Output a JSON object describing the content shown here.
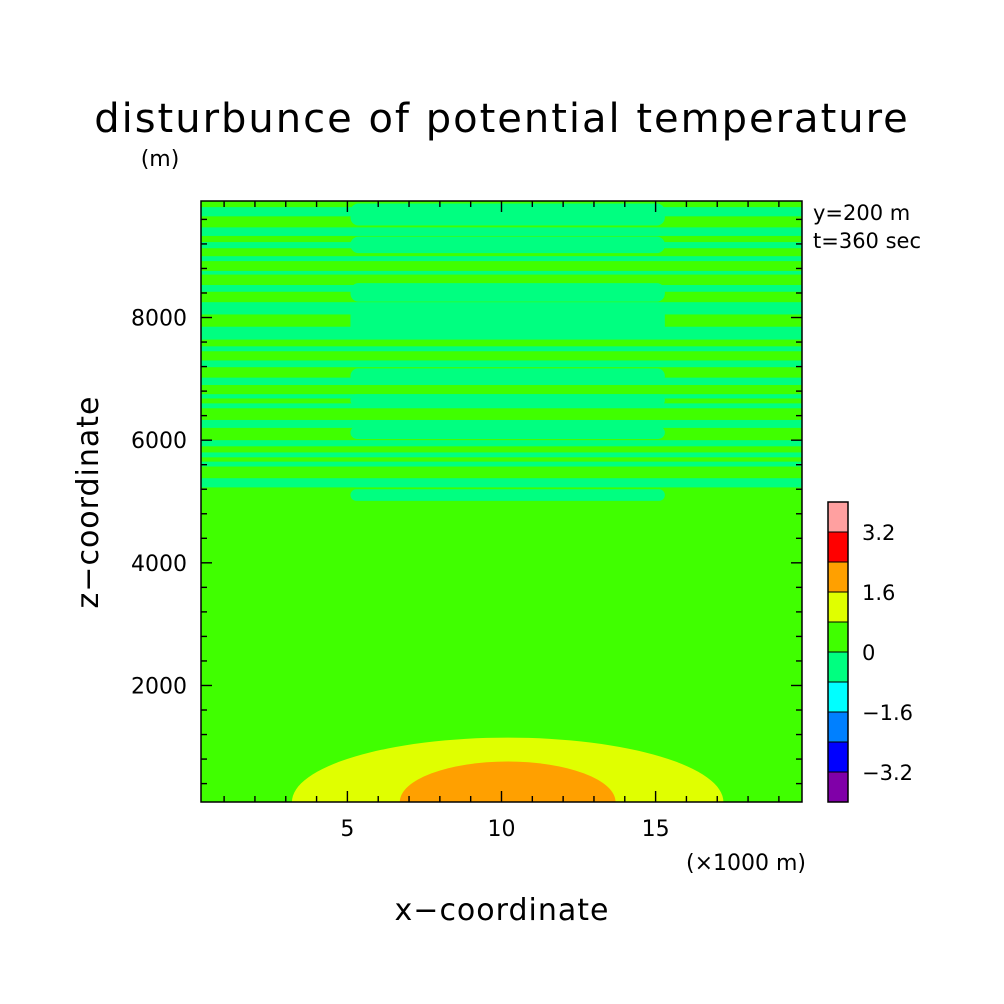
{
  "chart_data": {
    "type": "heatmap",
    "title": "disturbunce of potential temperature",
    "y_unit": "(m)",
    "xlabel": "x−coordinate",
    "ylabel": "z−coordinate",
    "x_unit": "(×1000 m)",
    "annotations": [
      "y=200 m",
      "t=360 sec"
    ],
    "xlim": [
      0.25,
      19.75
    ],
    "ylim": [
      100,
      9900
    ],
    "x_ticks": [
      5,
      10,
      15
    ],
    "x_tick_labels": [
      "5",
      "10",
      "15"
    ],
    "y_ticks": [
      2000,
      4000,
      6000,
      8000
    ],
    "y_tick_labels": [
      "2000",
      "4000",
      "6000",
      "8000"
    ],
    "grid": false,
    "colorbar": {
      "levels": [
        -4,
        -3.2,
        -2.4,
        -1.6,
        -0.8,
        0,
        0.8,
        1.6,
        2.4,
        3.2,
        4
      ],
      "colors": [
        "#8000a8",
        "#0000ff",
        "#0080ff",
        "#00ffff",
        "#00ff80",
        "#40ff00",
        "#e0ff00",
        "#ffa000",
        "#ff0000",
        "#ffa0a0"
      ],
      "tick_values": [
        -3.2,
        -1.6,
        0,
        1.6,
        3.2
      ],
      "tick_labels": [
        "−3.2",
        "−1.6",
        "0",
        "1.6",
        "3.2"
      ]
    },
    "background_color": "#40ff00",
    "regions": [
      {
        "level": "0.8 to 1.6",
        "color": "#e0ff00",
        "center_x": 10.2,
        "semi_axis_x": 7.0,
        "top_z": 1150
      },
      {
        "level": "1.6 to 2.4",
        "color": "#ffa000",
        "center_x": 10.2,
        "semi_axis_x": 3.5,
        "top_z": 760
      },
      {
        "level": "-0.8 to 0",
        "color": "#00ff80",
        "description_bands_z": [
          [
            9650,
            9800
          ],
          [
            9330,
            9470
          ],
          [
            9130,
            9230
          ],
          [
            8920,
            9000
          ],
          [
            8700,
            8760
          ],
          [
            8420,
            8530
          ],
          [
            8050,
            8250
          ],
          [
            7640,
            7850
          ],
          [
            7450,
            7530
          ],
          [
            7190,
            7300
          ],
          [
            6900,
            7020
          ],
          [
            6680,
            6750
          ],
          [
            6520,
            6600
          ],
          [
            6200,
            6330
          ],
          [
            5900,
            6000
          ],
          [
            5720,
            5800
          ],
          [
            5570,
            5650
          ],
          [
            5230,
            5380
          ]
        ]
      },
      {
        "level": "-0.8 to 0",
        "color": "#00ff80",
        "inner_x": [
          5.1,
          15.3
        ],
        "inner_bands_z": [
          [
            9500,
            9860
          ],
          [
            9050,
            9320
          ],
          [
            8260,
            8560
          ],
          [
            7700,
            8200
          ],
          [
            6920,
            7170
          ],
          [
            6550,
            6750
          ],
          [
            6020,
            6230
          ],
          [
            5010,
            5200
          ]
        ]
      }
    ]
  }
}
